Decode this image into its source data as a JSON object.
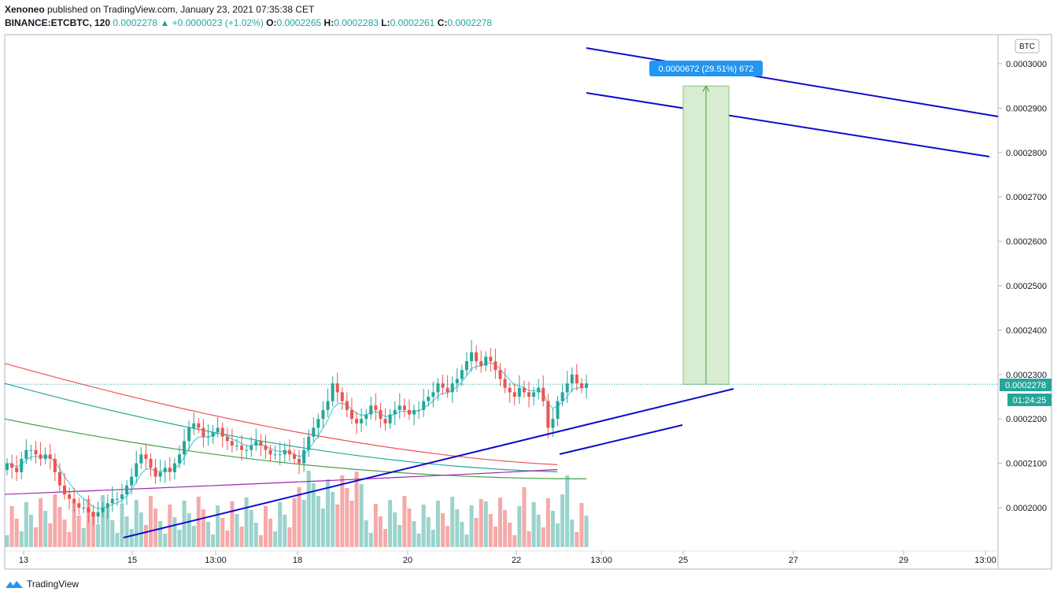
{
  "header": {
    "publisher_line_user": "Xenoneo",
    "publisher_line_rest": " published on TradingView.com, January 23, 2021 07:35:38 CET",
    "symbol": "BINANCE:ETCBTC, 120",
    "last": "0.0002278",
    "change": "+0.0000023 (+1.02%)",
    "o_label": "O:",
    "o_value": "0.0002265",
    "h_label": "H:",
    "h_value": "0.0002283",
    "l_label": "L:",
    "l_value": "0.0002261",
    "c_label": "C:",
    "c_value": "0.0002278"
  },
  "footer": {
    "brand": "TradingView"
  },
  "colors": {
    "up": "#26a69a",
    "down": "#ef5350",
    "trendline": "#0d0dcc",
    "measure_fill": "#d7ecd0",
    "label_blue": "#2196f3"
  },
  "chart_data": {
    "type": "candlestick",
    "currency_label": "BTC",
    "y_ticks": [
      "0.0003000",
      "0.0002900",
      "0.0002800",
      "0.0002700",
      "0.0002600",
      "0.0002500",
      "0.0002400",
      "0.0002300",
      "0.0002200",
      "0.0002100",
      "0.0002000"
    ],
    "x_ticks": [
      "13",
      "15",
      "13:00",
      "18",
      "20",
      "22",
      "13:00",
      "25",
      "27",
      "29",
      "13:00"
    ],
    "price_label": "0.0002278",
    "countdown_label": "01:24:25",
    "measure_label": "0.0000672 (29.51%) 672",
    "measure": {
      "from": 0.0002278,
      "to": 0.000295
    },
    "candles_close": [
      0.00021,
      0.000209,
      0.000208,
      0.000211,
      0.000213,
      0.000213,
      0.000212,
      0.000211,
      0.000212,
      0.000211,
      0.000208,
      0.000205,
      0.000203,
      0.000202,
      0.000201,
      0.0002,
      0.0002,
      0.000199,
      0.000198,
      0.000199,
      0.0002,
      0.000201,
      0.000202,
      0.000202,
      0.000203,
      0.000205,
      0.000207,
      0.00021,
      0.000212,
      0.000211,
      0.000209,
      0.000207,
      0.000208,
      0.000209,
      0.000208,
      0.00021,
      0.000212,
      0.000215,
      0.000218,
      0.000219,
      0.000218,
      0.000216,
      0.000216,
      0.000217,
      0.000218,
      0.000216,
      0.000215,
      0.000214,
      0.000214,
      0.000213,
      0.000213,
      0.000214,
      0.000215,
      0.000214,
      0.000213,
      0.000212,
      0.000212,
      0.000212,
      0.000213,
      0.000212,
      0.000211,
      0.00021,
      0.000213,
      0.000216,
      0.000218,
      0.00022,
      0.000222,
      0.000224,
      0.000228,
      0.000226,
      0.000224,
      0.000222,
      0.00022,
      0.000219,
      0.00022,
      0.000221,
      0.000223,
      0.000222,
      0.00022,
      0.000219,
      0.000221,
      0.000222,
      0.000223,
      0.000222,
      0.000221,
      0.000222,
      0.000222,
      0.000224,
      0.000225,
      0.000226,
      0.000228,
      0.000227,
      0.000226,
      0.000228,
      0.000229,
      0.000231,
      0.000233,
      0.000235,
      0.000233,
      0.000232,
      0.000234,
      0.000233,
      0.000231,
      0.000229,
      0.000227,
      0.000226,
      0.000225,
      0.000227,
      0.000226,
      0.000225,
      0.000226,
      0.000227,
      0.000224,
      0.000218,
      0.00022,
      0.000224,
      0.000226,
      0.000228,
      0.00023,
      0.000228,
      0.000227,
      0.000228
    ],
    "ma_red": [
      0.0002325,
      0.0002095
    ],
    "ma_teal": [
      0.000228,
      0.000208
    ],
    "ma_green": [
      0.00022,
      0.0002065
    ],
    "ma_purple": [
      0.000203,
      0.000209
    ]
  }
}
